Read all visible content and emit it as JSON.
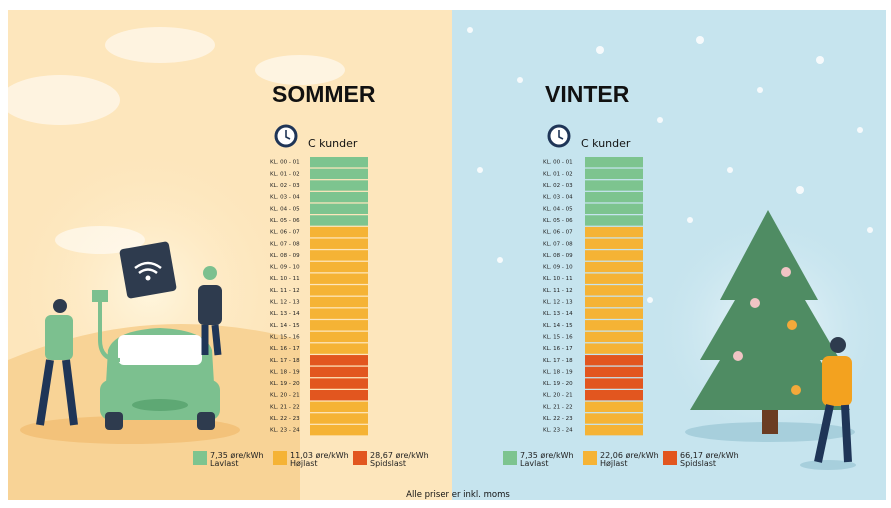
{
  "panels": [
    {
      "title": "SOMMER",
      "subtitle": "C kunder",
      "rows": [
        {
          "label": "KL. 00 - 01",
          "color": "#7dc48f"
        },
        {
          "label": "KL. 01 - 02",
          "color": "#7dc48f"
        },
        {
          "label": "KL. 02 - 03",
          "color": "#7dc48f"
        },
        {
          "label": "KL. 03 - 04",
          "color": "#7dc48f"
        },
        {
          "label": "KL. 04 - 05",
          "color": "#7dc48f"
        },
        {
          "label": "KL. 05 - 06",
          "color": "#7dc48f"
        },
        {
          "label": "KL. 06 - 07",
          "color": "#f5b335"
        },
        {
          "label": "KL. 07 - 08",
          "color": "#f5b335"
        },
        {
          "label": "KL. 08 - 09",
          "color": "#f5b335"
        },
        {
          "label": "KL. 09 - 10",
          "color": "#f5b335"
        },
        {
          "label": "KL. 10 - 11",
          "color": "#f5b335"
        },
        {
          "label": "KL. 11 - 12",
          "color": "#f5b335"
        },
        {
          "label": "KL. 12 - 13",
          "color": "#f5b335"
        },
        {
          "label": "KL. 13 - 14",
          "color": "#f5b335"
        },
        {
          "label": "KL. 14 - 15",
          "color": "#f5b335"
        },
        {
          "label": "KL. 15 - 16",
          "color": "#f5b335"
        },
        {
          "label": "KL. 16 - 17",
          "color": "#f5b335"
        },
        {
          "label": "KL. 17 - 18",
          "color": "#e2561f"
        },
        {
          "label": "KL. 18 - 19",
          "color": "#e2561f"
        },
        {
          "label": "KL. 19 - 20",
          "color": "#e2561f"
        },
        {
          "label": "KL. 20 - 21",
          "color": "#e2561f"
        },
        {
          "label": "KL. 21 - 22",
          "color": "#f5b335"
        },
        {
          "label": "KL. 22 - 23",
          "color": "#f5b335"
        },
        {
          "label": "KL. 23 - 24",
          "color": "#f5b335"
        }
      ],
      "legend": [
        {
          "price": "7,35 øre/kWh",
          "name": "Lavlast",
          "color": "#7dc48f"
        },
        {
          "price": "11,03 øre/kWh",
          "name": "Højlast",
          "color": "#f5b335"
        },
        {
          "price": "28,67 øre/kWh",
          "name": "Spidslast",
          "color": "#e2561f"
        }
      ]
    },
    {
      "title": "VINTER",
      "subtitle": "C kunder",
      "rows": [
        {
          "label": "KL. 00 - 01",
          "color": "#7dc48f"
        },
        {
          "label": "KL. 01 - 02",
          "color": "#7dc48f"
        },
        {
          "label": "KL. 02 - 03",
          "color": "#7dc48f"
        },
        {
          "label": "KL. 03 - 04",
          "color": "#7dc48f"
        },
        {
          "label": "KL. 04 - 05",
          "color": "#7dc48f"
        },
        {
          "label": "KL. 05 - 06",
          "color": "#7dc48f"
        },
        {
          "label": "KL. 06 - 07",
          "color": "#f5b335"
        },
        {
          "label": "KL. 07 - 08",
          "color": "#f5b335"
        },
        {
          "label": "KL. 08 - 09",
          "color": "#f5b335"
        },
        {
          "label": "KL. 09 - 10",
          "color": "#f5b335"
        },
        {
          "label": "KL. 10 - 11",
          "color": "#f5b335"
        },
        {
          "label": "KL. 11 - 12",
          "color": "#f5b335"
        },
        {
          "label": "KL. 12 - 13",
          "color": "#f5b335"
        },
        {
          "label": "KL. 13 - 14",
          "color": "#f5b335"
        },
        {
          "label": "KL. 14 - 15",
          "color": "#f5b335"
        },
        {
          "label": "KL. 15 - 16",
          "color": "#f5b335"
        },
        {
          "label": "KL. 16 - 17",
          "color": "#f5b335"
        },
        {
          "label": "KL. 17 - 18",
          "color": "#e2561f"
        },
        {
          "label": "KL. 18 - 19",
          "color": "#e2561f"
        },
        {
          "label": "KL. 19 - 20",
          "color": "#e2561f"
        },
        {
          "label": "KL. 20 - 21",
          "color": "#e2561f"
        },
        {
          "label": "KL. 21 - 22",
          "color": "#f5b335"
        },
        {
          "label": "KL. 22 - 23",
          "color": "#f5b335"
        },
        {
          "label": "KL. 23 - 24",
          "color": "#f5b335"
        }
      ],
      "legend": [
        {
          "price": "7,35 øre/kWh",
          "name": "Lavlast",
          "color": "#7dc48f"
        },
        {
          "price": "22,06 øre/kWh",
          "name": "Højlast",
          "color": "#f5b335"
        },
        {
          "price": "66,17 øre/kWh",
          "name": "Spidslast",
          "color": "#e2561f"
        }
      ]
    }
  ],
  "footer": "Alle priser er inkl. moms"
}
